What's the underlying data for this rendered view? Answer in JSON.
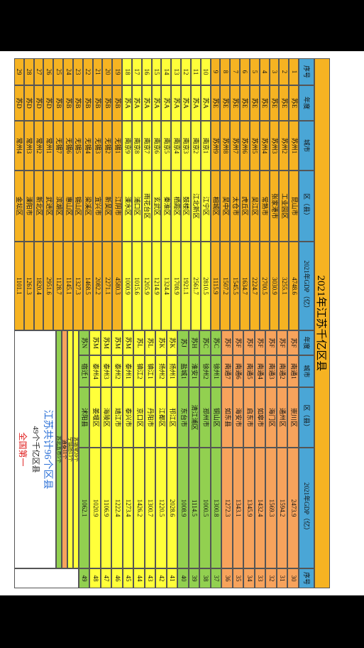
{
  "header": {
    "title": "2021年江苏千亿区县"
  },
  "table": {
    "left_columns": [
      "序号",
      "年度",
      "城市",
      "区（县）",
      "2021年GDP（亿）"
    ],
    "left_rows": [
      [
        "1",
        "苏E",
        "苏州1",
        "昆山市",
        "4748.6"
      ],
      [
        "2",
        "苏E",
        "苏州2",
        "工业园区",
        "3255.1"
      ],
      [
        "3",
        "苏E",
        "苏州3",
        "张家港市",
        "3030.9"
      ],
      [
        "4",
        "苏E",
        "苏州4",
        "常熟市",
        "2700.5"
      ],
      [
        "5",
        "苏E",
        "苏州5",
        "吴江区",
        "2224.7"
      ],
      [
        "6",
        "苏E",
        "苏州6",
        "虎丘区",
        "1634.7"
      ],
      [
        "7",
        "苏E",
        "苏州7",
        "太仓市",
        "1545.5"
      ],
      [
        "8",
        "苏E",
        "苏州8",
        "吴中区",
        "1507.2"
      ],
      [
        "9",
        "苏E",
        "苏州9",
        "相城区",
        "1115.9"
      ],
      [
        "10",
        "苏A",
        "南京1",
        "江宁区",
        "2810.5"
      ],
      [
        "11",
        "苏A",
        "南京2",
        "江北新区",
        "2561.7"
      ],
      [
        "12",
        "苏A",
        "南京3",
        "鼓楼区",
        "1921.1"
      ],
      [
        "13",
        "苏A",
        "南京4",
        "栖霞区",
        "1708.9"
      ],
      [
        "14",
        "苏A",
        "南京5",
        "秦淮区",
        "1324.4"
      ],
      [
        "15",
        "苏A",
        "南京6",
        "玄武区",
        "1214.9"
      ],
      [
        "16",
        "苏A",
        "南京7",
        "雨花台区",
        "1205.9"
      ],
      [
        "17",
        "苏A",
        "南京8",
        "浦口区",
        "1015.6"
      ],
      [
        "18",
        "苏A",
        "南京9",
        "溧水区",
        "1000.9"
      ],
      [
        "19",
        "苏B",
        "无锡1",
        "江阴市",
        "4580.3"
      ],
      [
        "20",
        "苏B",
        "无锡2",
        "新吴区",
        "2271.1"
      ],
      [
        "21",
        "苏B",
        "无锡3",
        "宜兴市",
        "2082.2"
      ],
      [
        "22",
        "苏B",
        "无锡4",
        "梁溪区",
        "1468.5"
      ],
      [
        "23",
        "苏B",
        "无锡5",
        "锡山区",
        "1327.3"
      ],
      [
        "24",
        "苏B",
        "无锡6",
        "惠山区",
        "1145.1"
      ],
      [
        "25",
        "苏B",
        "无锡7",
        "滨湖区",
        "1128.7"
      ],
      [
        "26",
        "苏D",
        "常州1",
        "武进区",
        "2951.6"
      ],
      [
        "27",
        "苏D",
        "常州2",
        "新北区",
        "1820.4"
      ],
      [
        "28",
        "苏D",
        "常州3",
        "溧阳市",
        "1261.3"
      ],
      [
        "29",
        "苏D",
        "常州4",
        "金坛区",
        "1101.1"
      ]
    ],
    "right_columns": [
      "年度",
      "城市",
      "区（县）",
      "2021年GDP（亿）",
      "序号"
    ],
    "right_rows": [
      [
        "苏F",
        "南通1",
        "崇川区",
        "2473.9",
        "30"
      ],
      [
        "苏F",
        "南通2",
        "通州区",
        "1594.2",
        "31"
      ],
      [
        "苏F",
        "南通3",
        "海门区",
        "1569.3",
        "32"
      ],
      [
        "苏F",
        "南通4",
        "如皋市",
        "1432.4",
        "33"
      ],
      [
        "苏F",
        "南通5",
        "启东市",
        "1345.9",
        "34"
      ],
      [
        "苏F",
        "南通6",
        "海安市",
        "1343.1",
        "35"
      ],
      [
        "苏F",
        "南通7",
        "如东县",
        "1272.3",
        "36"
      ],
      [
        "苏C",
        "徐州1",
        "铜山区",
        "1300.8",
        "37"
      ],
      [
        "苏C",
        "徐州2",
        "邳州市",
        "1000.5",
        "38"
      ],
      [
        "苏H",
        "淮安1",
        "清江浦区",
        "1114.5",
        "39"
      ],
      [
        "苏J",
        "盐城1",
        "东台市",
        "1008.9",
        "40"
      ],
      [
        "苏K",
        "扬州1",
        "邗江区",
        "2028.6",
        "41"
      ],
      [
        "苏K",
        "扬州2",
        "江都区",
        "1220.5",
        "42"
      ],
      [
        "苏L",
        "镇江1",
        "丹阳市",
        "1300.7",
        "43"
      ],
      [
        "苏L",
        "镇江2",
        "京口区",
        "1426.2",
        "44"
      ],
      [
        "苏M",
        "泰州1",
        "泰兴市",
        "1273.4",
        "45"
      ],
      [
        "苏M",
        "泰州2",
        "靖江市",
        "1222.4",
        "46"
      ],
      [
        "苏M",
        "泰州3",
        "海陵区",
        "1106.9",
        "47"
      ],
      [
        "苏M",
        "泰州4",
        "姜堰区",
        "1020.9",
        "48"
      ],
      [
        "苏N",
        "宿迁1",
        "沭阳县",
        "1062.1",
        "49"
      ]
    ]
  },
  "notes": {
    "groups": [
      "苏锡常20个",
      "宁镇扬13个",
      "通泰11个",
      "苏北五市5个"
    ],
    "summary": [
      "江苏共计96个区县",
      "49个千亿区县",
      "全国第一"
    ]
  }
}
